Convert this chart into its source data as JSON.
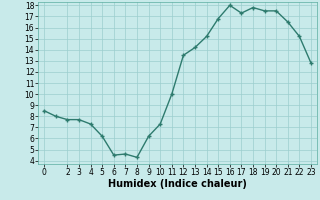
{
  "xlabel": "Humidex (Indice chaleur)",
  "x_values": [
    0,
    1,
    2,
    3,
    4,
    5,
    6,
    7,
    8,
    9,
    10,
    11,
    12,
    13,
    14,
    15,
    16,
    17,
    18,
    19,
    20,
    21,
    22,
    23
  ],
  "y_values": [
    8.5,
    8.0,
    7.7,
    7.7,
    7.3,
    6.2,
    4.5,
    4.6,
    4.3,
    6.2,
    7.3,
    10.0,
    13.5,
    14.2,
    15.2,
    16.8,
    18.0,
    17.3,
    17.8,
    17.5,
    17.5,
    16.5,
    15.2,
    12.8
  ],
  "line_color": "#2e7b6e",
  "marker": "+",
  "marker_size": 3.5,
  "bg_color": "#c8eaea",
  "grid_color": "#9ccece",
  "ylim": [
    4,
    18
  ],
  "xlim": [
    -0.5,
    23.5
  ],
  "yticks": [
    4,
    5,
    6,
    7,
    8,
    9,
    10,
    11,
    12,
    13,
    14,
    15,
    16,
    17,
    18
  ],
  "xticks": [
    0,
    2,
    3,
    4,
    5,
    6,
    7,
    8,
    9,
    10,
    11,
    12,
    13,
    14,
    15,
    16,
    17,
    18,
    19,
    20,
    21,
    22,
    23
  ],
  "tick_fontsize": 5.5,
  "xlabel_fontsize": 7,
  "line_width": 1.0
}
